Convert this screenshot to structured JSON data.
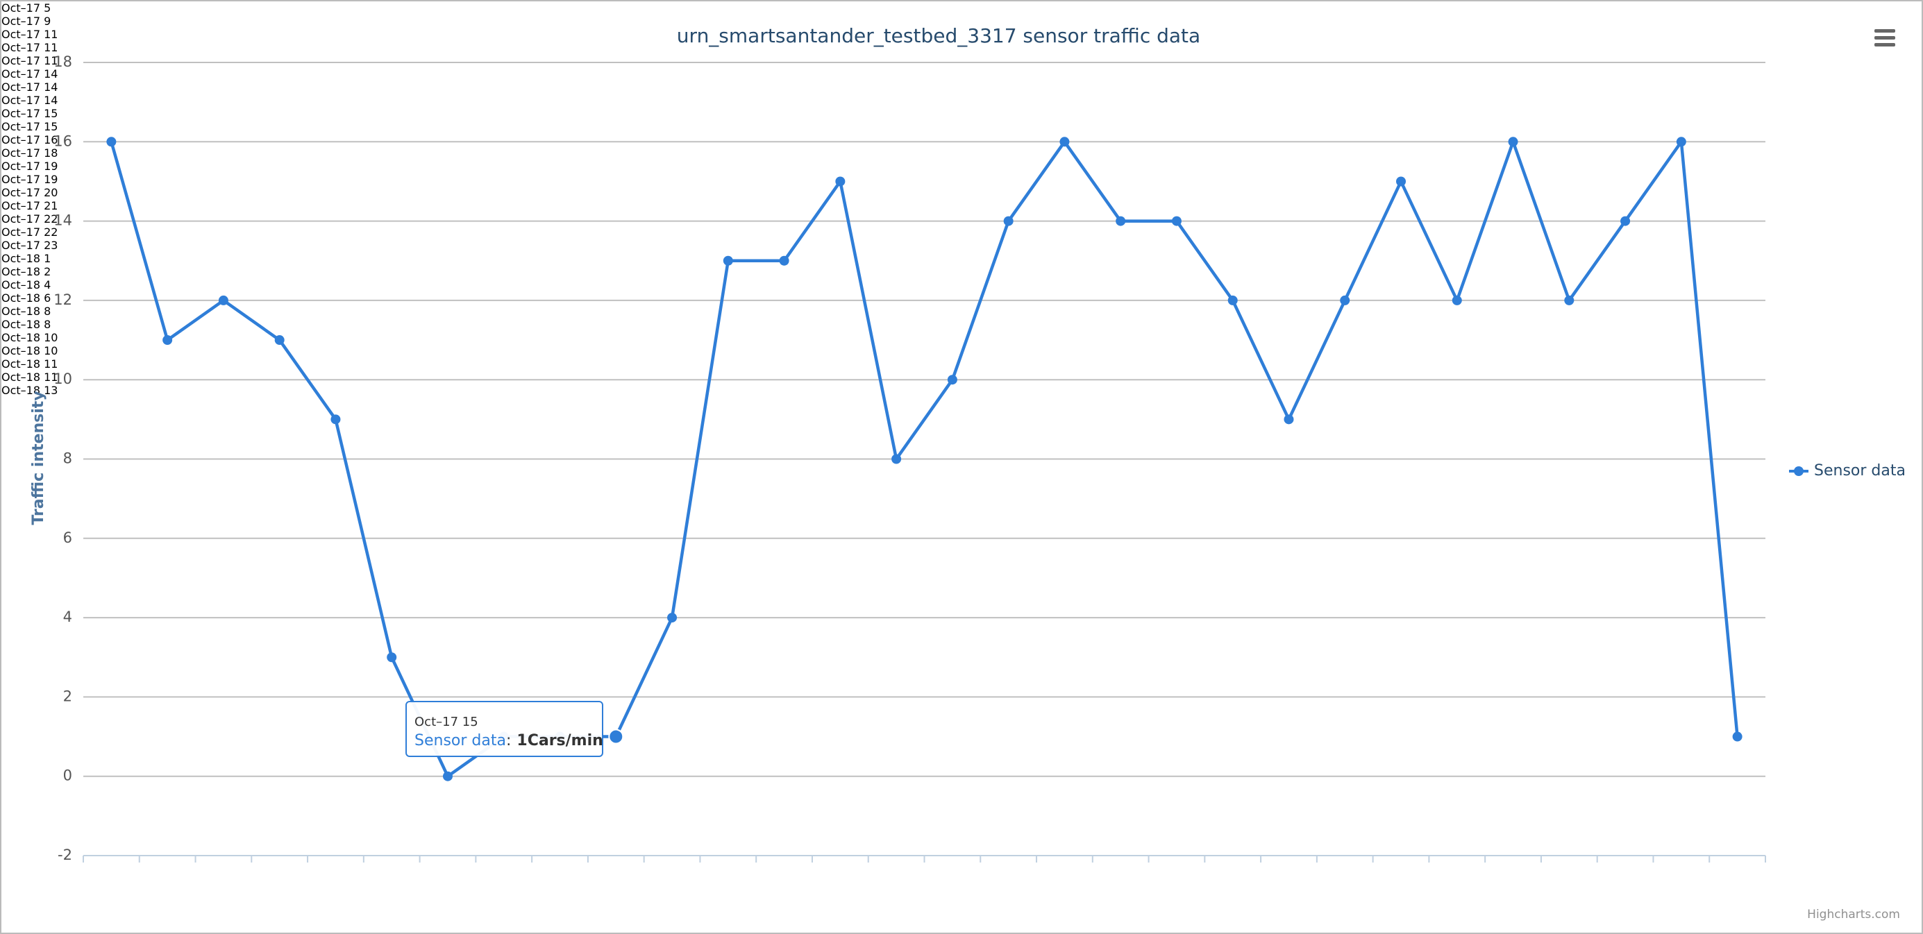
{
  "chart_data": {
    "type": "line",
    "title": "urn_smartsantander_testbed_3317 sensor traffic data",
    "y_axis_label": "Traffic intensity",
    "categories": [
      "Oct–17 5",
      "Oct–17 9",
      "Oct–17 11",
      "Oct–17 11",
      "Oct–17 11",
      "Oct–17 14",
      "Oct–17 14",
      "Oct–17 14",
      "Oct–17 15",
      "Oct–17 15",
      "Oct–17 16",
      "Oct–17 18",
      "Oct–17 19",
      "Oct–17 19",
      "Oct–17 20",
      "Oct–17 21",
      "Oct–17 22",
      "Oct–17 22",
      "Oct–17 23",
      "Oct–18 1",
      "Oct–18 2",
      "Oct–18 4",
      "Oct–18 6",
      "Oct–18 8",
      "Oct–18 8",
      "Oct–18 10",
      "Oct–18 10",
      "Oct–18 11",
      "Oct–18 11",
      "Oct–18 13"
    ],
    "series": [
      {
        "name": "Sensor data",
        "color": "#2f7ed8",
        "values": [
          16,
          11,
          12,
          11,
          9,
          3,
          0,
          1,
          1,
          1,
          4,
          13,
          13,
          15,
          8,
          10,
          14,
          16,
          14,
          14,
          12,
          9,
          12,
          15,
          12,
          16,
          12,
          14,
          16,
          1
        ]
      }
    ],
    "ylim": [
      -2,
      18
    ],
    "yticks": [
      -2,
      0,
      2,
      4,
      6,
      8,
      10,
      12,
      14,
      16,
      18
    ],
    "grid": true,
    "legend_position": "right",
    "tooltip": {
      "header": "Oct–17 15",
      "series_name": "Sensor data",
      "separator": ":",
      "text": "1Cars/min",
      "point_index": 9
    },
    "credits": "Highcharts.com"
  }
}
